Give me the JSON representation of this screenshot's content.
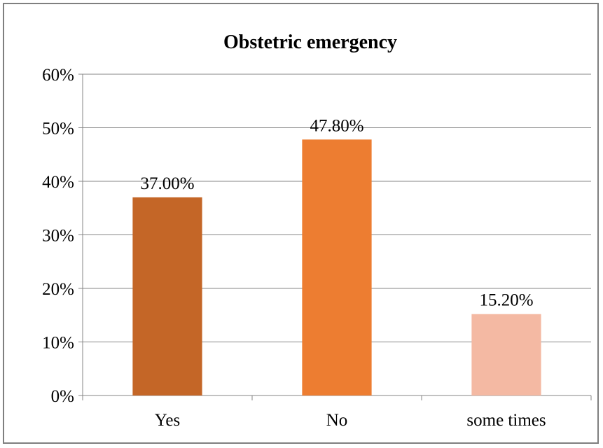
{
  "chart_data": {
    "type": "bar",
    "title": "Obstetric emergency",
    "categories": [
      "Yes",
      "No",
      "some times"
    ],
    "values": [
      37.0,
      47.8,
      15.2
    ],
    "data_labels": [
      "37.00%",
      "47.80%",
      "15.20%"
    ],
    "bar_colors": [
      "#c46627",
      "#ed7d31",
      "#f4b9a3"
    ],
    "xlabel": "",
    "ylabel": "",
    "ylim": [
      0,
      60
    ],
    "yticks": [
      0,
      10,
      20,
      30,
      40,
      50,
      60
    ],
    "ytick_labels": [
      "0%",
      "10%",
      "20%",
      "30%",
      "40%",
      "50%",
      "60%"
    ],
    "grid": true,
    "legend": "none",
    "gridline_color": "#868686",
    "axis_color": "#868686"
  }
}
